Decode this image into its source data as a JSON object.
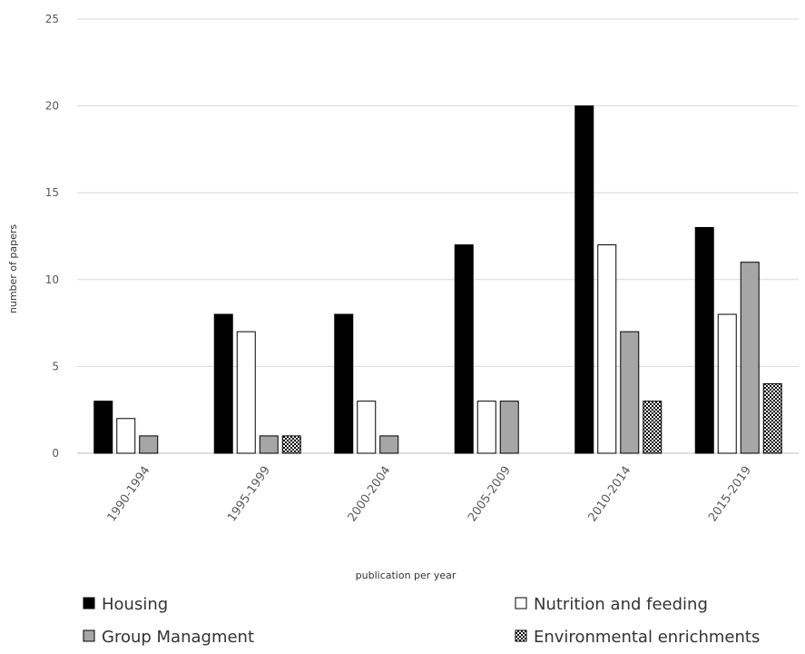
{
  "chart_data": {
    "type": "bar",
    "title": "",
    "xlabel": "publication per year",
    "ylabel": "number of papers",
    "ylim": [
      0,
      25
    ],
    "yticks": [
      0,
      5,
      10,
      15,
      20,
      25
    ],
    "grid": true,
    "legend_position": "bottom",
    "categories": [
      "1990-1994",
      "1995-1999",
      "2000-2004",
      "2005-2009",
      "2010-2014",
      "2015-2019"
    ],
    "series": [
      {
        "name": "Housing",
        "values": [
          3,
          8,
          8,
          12,
          20,
          13
        ],
        "fill": "#000000",
        "pattern": "solid"
      },
      {
        "name": "Nutrition and feeding",
        "values": [
          2,
          7,
          3,
          3,
          12,
          8
        ],
        "fill": "#ffffff",
        "pattern": "solid"
      },
      {
        "name": "Group Managment",
        "values": [
          1,
          1,
          1,
          3,
          7,
          11
        ],
        "fill": "#a6a6a6",
        "pattern": "solid"
      },
      {
        "name": "Environmental enrichments",
        "values": [
          0,
          1,
          0,
          0,
          3,
          4
        ],
        "fill": "#ffffff",
        "pattern": "checker"
      }
    ]
  }
}
